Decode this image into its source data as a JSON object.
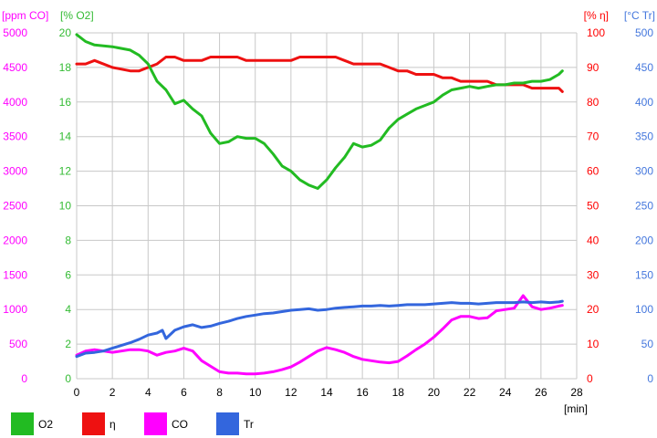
{
  "chart_data": {
    "type": "line",
    "x_unit_label": "[min]",
    "x_ticks": [
      "0",
      "2",
      "4",
      "6",
      "8",
      "10",
      "12",
      "14",
      "16",
      "18",
      "20",
      "22",
      "24",
      "26",
      "28"
    ],
    "xlim": [
      0,
      28
    ],
    "grid": true,
    "legend_position": "bottom",
    "axes": {
      "co": {
        "title": "[ppm CO]",
        "color": "#ff00ff",
        "ylim": [
          0,
          5000
        ],
        "ticks": [
          "0",
          "500",
          "1000",
          "1500",
          "2000",
          "2500",
          "3000",
          "3500",
          "4000",
          "4500",
          "5000"
        ]
      },
      "o2": {
        "title": "[% O2]",
        "color": "#33bb33",
        "ylim": [
          0,
          20
        ],
        "ticks": [
          "0",
          "2",
          "4",
          "6",
          "8",
          "10",
          "12",
          "14",
          "16",
          "18",
          "20"
        ]
      },
      "eta": {
        "title": "[% η]",
        "color": "#ff0000",
        "ylim": [
          0,
          100
        ],
        "ticks": [
          "0",
          "10",
          "20",
          "30",
          "40",
          "50",
          "60",
          "70",
          "80",
          "90",
          "100"
        ]
      },
      "tr": {
        "title": "[°C Tr]",
        "color": "#4477dd",
        "ylim": [
          0,
          500
        ],
        "ticks": [
          "0",
          "50",
          "100",
          "150",
          "200",
          "250",
          "300",
          "350",
          "400",
          "450",
          "500"
        ]
      }
    },
    "series": [
      {
        "name": "O2",
        "axis": "o2",
        "color": "#22bb22",
        "x": [
          0,
          0.5,
          1,
          2,
          3,
          3.5,
          4,
          4.5,
          5,
          5.5,
          6,
          6.5,
          7,
          7.5,
          8,
          8.5,
          9,
          9.5,
          10,
          10.5,
          11,
          11.5,
          12,
          12.5,
          13,
          13.5,
          14,
          14.5,
          15,
          15.5,
          16,
          16.5,
          17,
          17.5,
          18,
          18.5,
          19,
          19.5,
          20,
          20.5,
          21,
          21.5,
          22,
          22.5,
          23,
          23.5,
          24,
          24.5,
          25,
          25.5,
          26,
          26.5,
          27,
          27.2
        ],
        "y": [
          19.9,
          19.5,
          19.3,
          19.2,
          19.0,
          18.7,
          18.2,
          17.2,
          16.7,
          15.9,
          16.1,
          15.6,
          15.2,
          14.2,
          13.6,
          13.7,
          14.0,
          13.9,
          13.9,
          13.6,
          13.0,
          12.3,
          12.0,
          11.5,
          11.2,
          11.0,
          11.5,
          12.2,
          12.8,
          13.6,
          13.4,
          13.5,
          13.8,
          14.5,
          15.0,
          15.3,
          15.6,
          15.8,
          16.0,
          16.4,
          16.7,
          16.8,
          16.9,
          16.8,
          16.9,
          17.0,
          17.0,
          17.1,
          17.1,
          17.2,
          17.2,
          17.3,
          17.6,
          17.8
        ]
      },
      {
        "name": "η",
        "axis": "eta",
        "color": "#ee1111",
        "x": [
          0,
          0.5,
          1,
          2,
          3,
          3.5,
          4,
          4.5,
          5,
          5.5,
          6,
          6.5,
          7,
          7.5,
          8,
          8.5,
          9,
          9.5,
          10,
          10.5,
          11,
          11.5,
          12,
          12.5,
          13,
          13.5,
          14,
          14.5,
          15,
          15.5,
          16,
          16.5,
          17,
          17.5,
          18,
          18.5,
          19,
          19.5,
          20,
          20.5,
          21,
          21.5,
          22,
          22.5,
          23,
          23.5,
          24,
          24.5,
          25,
          25.5,
          26,
          26.5,
          27,
          27.2
        ],
        "y": [
          91,
          91,
          92,
          90,
          89,
          89,
          90,
          91,
          93,
          93,
          92,
          92,
          92,
          93,
          93,
          93,
          93,
          92,
          92,
          92,
          92,
          92,
          92,
          93,
          93,
          93,
          93,
          93,
          92,
          91,
          91,
          91,
          91,
          90,
          89,
          89,
          88,
          88,
          88,
          87,
          87,
          86,
          86,
          86,
          86,
          85,
          85,
          85,
          85,
          84,
          84,
          84,
          84,
          83
        ]
      },
      {
        "name": "CO",
        "axis": "co",
        "color": "#ff00ff",
        "x": [
          0,
          0.5,
          1,
          1.5,
          2,
          3,
          3.5,
          4,
          4.5,
          5,
          5.5,
          6,
          6.5,
          7,
          7.5,
          8,
          8.5,
          9,
          9.5,
          10,
          10.5,
          11,
          11.5,
          12,
          12.5,
          13,
          13.5,
          14,
          14.5,
          15,
          15.5,
          16,
          16.5,
          17,
          17.5,
          18,
          18.5,
          19,
          19.5,
          20,
          20.5,
          21,
          21.5,
          22,
          22.5,
          23,
          23.5,
          24,
          24.5,
          25,
          25.5,
          26,
          26.5,
          27,
          27.2
        ],
        "y": [
          340,
          400,
          420,
          400,
          380,
          420,
          420,
          400,
          340,
          380,
          400,
          440,
          400,
          260,
          180,
          100,
          80,
          80,
          70,
          70,
          80,
          100,
          130,
          170,
          240,
          320,
          400,
          450,
          420,
          380,
          320,
          280,
          260,
          240,
          230,
          250,
          330,
          420,
          500,
          600,
          720,
          850,
          900,
          900,
          870,
          880,
          980,
          1000,
          1020,
          1200,
          1040,
          1000,
          1020,
          1050,
          1060
        ]
      },
      {
        "name": "Tr",
        "axis": "tr",
        "color": "#3366dd",
        "x": [
          0,
          0.5,
          1,
          1.5,
          2,
          2.5,
          3,
          3.5,
          4,
          4.5,
          4.8,
          5,
          5.5,
          6,
          6.5,
          7,
          7.5,
          8,
          8.5,
          9,
          9.5,
          10,
          10.5,
          11,
          11.5,
          12,
          12.5,
          13,
          13.5,
          14,
          14.5,
          15,
          15.5,
          16,
          16.5,
          17,
          17.5,
          18,
          18.5,
          19,
          19.5,
          20,
          20.5,
          21,
          21.5,
          22,
          22.5,
          23,
          23.5,
          24,
          24.5,
          25,
          25.5,
          26,
          26.5,
          27,
          27.2
        ],
        "y": [
          32,
          37,
          38,
          40,
          44,
          48,
          52,
          57,
          63,
          66,
          70,
          58,
          70,
          75,
          78,
          74,
          76,
          80,
          83,
          87,
          90,
          92,
          94,
          95,
          97,
          99,
          100,
          101,
          99,
          100,
          102,
          103,
          104,
          105,
          105,
          106,
          105,
          106,
          107,
          107,
          107,
          108,
          109,
          110,
          109,
          109,
          108,
          109,
          110,
          110,
          110,
          111,
          110,
          111,
          110,
          111,
          112
        ]
      }
    ]
  }
}
